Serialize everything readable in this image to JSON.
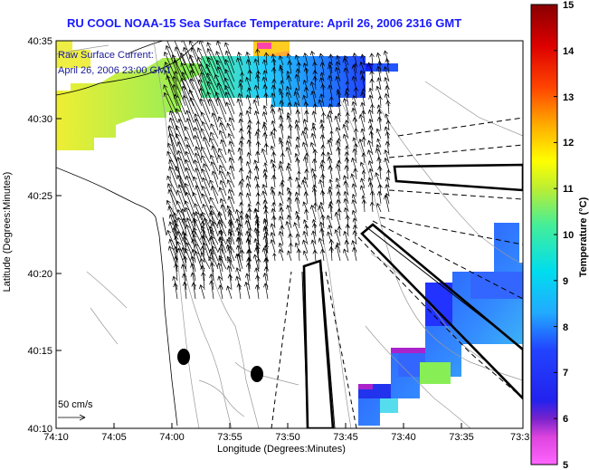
{
  "title": "RU COOL  NOAA-15  Sea Surface Temperature:  April 26, 2006 2316 GMT",
  "current_label": {
    "line1": "Raw Surface Current:",
    "line2": "April 26, 2006 23:00 GMT"
  },
  "scale_label": "50 cm/s",
  "axes": {
    "x_label": "Longitude (Degrees:Minutes)",
    "y_label": "Latitude (Degrees:Minutes)",
    "x_ticks": [
      "74:10",
      "74:05",
      "74:00",
      "73:55",
      "73:50",
      "73:45",
      "73:40",
      "73:35",
      "73:3"
    ],
    "y_ticks": [
      "40:35",
      "40:30",
      "40:25",
      "40:20",
      "40:15",
      "40:10"
    ]
  },
  "colorbar": {
    "label": "Temperature (°C)",
    "ticks": [
      "15",
      "14",
      "13",
      "12",
      "11",
      "10",
      "9",
      "8",
      "7",
      "6",
      "5"
    ],
    "min": 5,
    "max": 15
  },
  "colors": {
    "title": "#1a1aff",
    "label_text": "#1a1a99"
  }
}
